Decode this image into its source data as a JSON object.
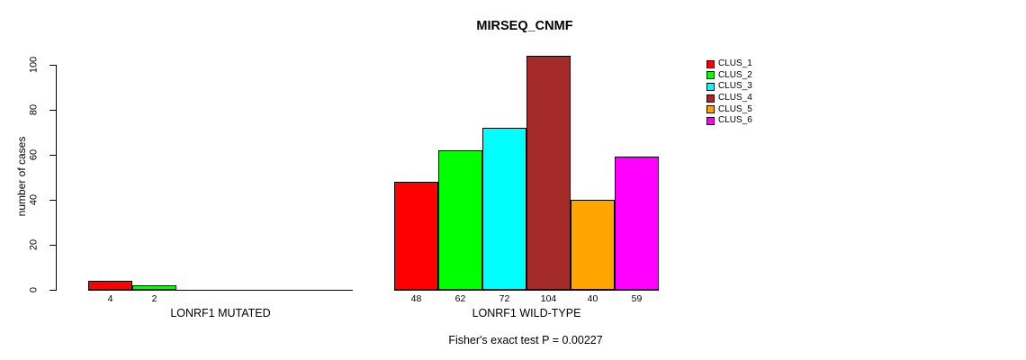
{
  "page": {
    "background": "#FFFFFF"
  },
  "chart_data": {
    "type": "bar",
    "title": "MIRSEQ_CNMF",
    "ylabel": "number of cases",
    "xlabel": "",
    "ylim": [
      0,
      100
    ],
    "yticks": [
      0,
      20,
      40,
      60,
      80,
      100
    ],
    "grid": false,
    "legend_position": "right",
    "series_labels": [
      "CLUS_1",
      "CLUS_2",
      "CLUS_3",
      "CLUS_4",
      "CLUS_5",
      "CLUS_6"
    ],
    "legend": [
      {
        "label": "CLUS_1",
        "color": "#FF0000"
      },
      {
        "label": "CLUS_2",
        "color": "#00FF00"
      },
      {
        "label": "CLUS_3",
        "color": "#00FFFF"
      },
      {
        "label": "CLUS_4",
        "color": "#A52A2A"
      },
      {
        "label": "CLUS_5",
        "color": "#FFA500"
      },
      {
        "label": "CLUS_6",
        "color": "#FF00FF"
      }
    ],
    "groups": [
      {
        "label": "LONRF1 MUTATED",
        "values": [
          4,
          2,
          0,
          0,
          0,
          0
        ]
      },
      {
        "label": "LONRF1 WILD-TYPE",
        "values": [
          48,
          62,
          72,
          104,
          40,
          59
        ]
      }
    ],
    "annotation": "Fisher's exact test P = 0.00227"
  }
}
